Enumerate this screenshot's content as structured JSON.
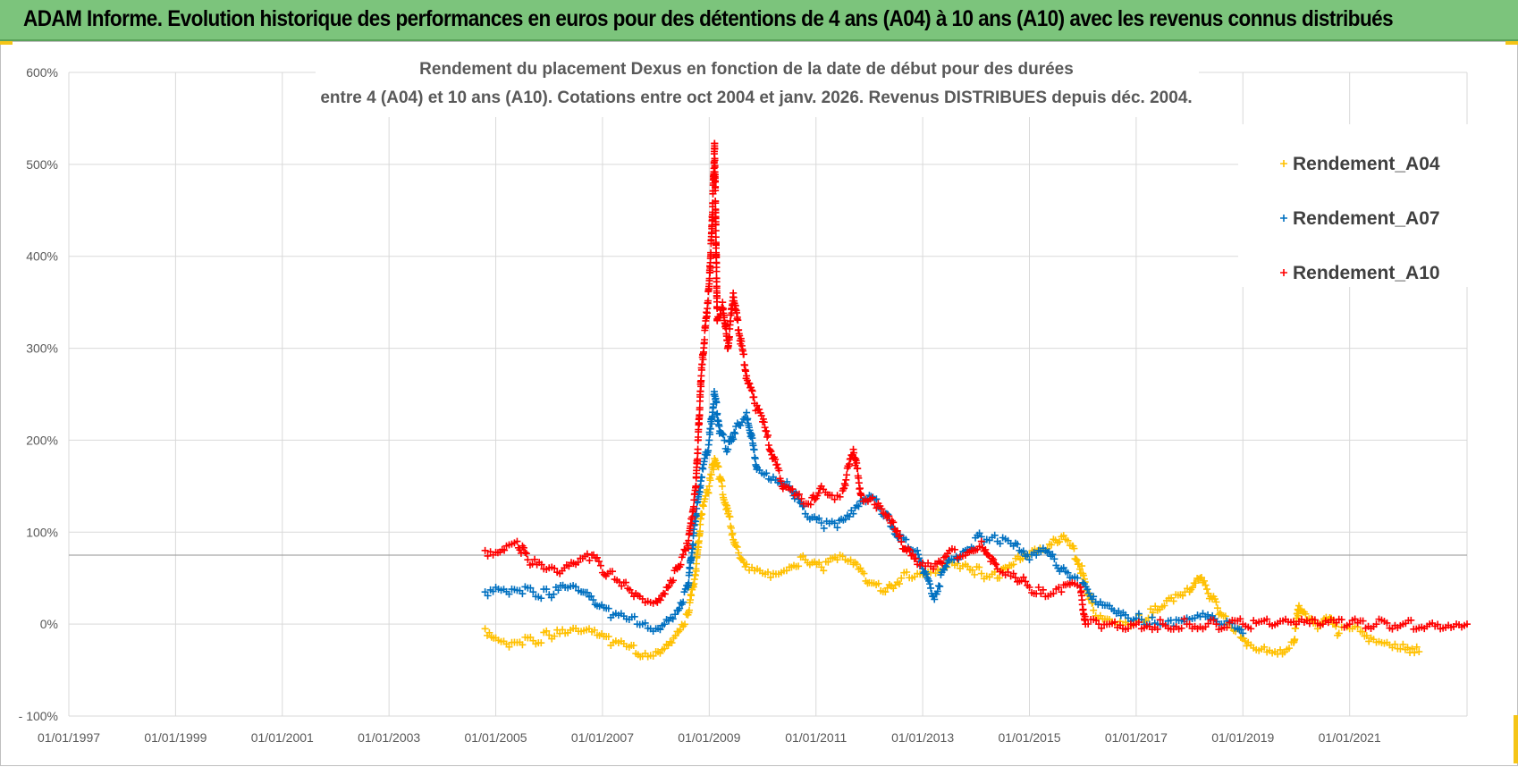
{
  "header": {
    "title": "ADAM Informe. Evolution historique des performances en euros pour des détentions de 4 ans (A04) à 10 ans (A10) avec les revenus connus distribués"
  },
  "colors": {
    "header_bg": "#7cc47c",
    "corner_accent": "#f5c518",
    "grid": "#d9d9d9",
    "reference_line": "#a6a6a6"
  },
  "chart_data": {
    "type": "scatter",
    "title_lines": [
      "Rendement du placement Dexus en fonction de la date de début pour des durées",
      "entre 4 (A04) et 10 ans (A10). Cotations entre oct 2004 et janv. 2026. Revenus DISTRIBUES depuis déc. 2004."
    ],
    "xlabel": "",
    "ylabel": "",
    "x_tick_labels": [
      "01/01/1997",
      "01/01/1999",
      "01/01/2001",
      "01/01/2003",
      "01/01/2005",
      "01/01/2007",
      "01/01/2009",
      "01/01/2011",
      "01/01/2013",
      "01/01/2015",
      "01/01/2017",
      "01/01/2019",
      "01/01/2021"
    ],
    "x_tick_years": [
      1997,
      1999,
      2001,
      2003,
      2005,
      2007,
      2009,
      2011,
      2013,
      2015,
      2017,
      2019,
      2021
    ],
    "xlim": [
      1997,
      2023.2
    ],
    "y_tick_labels": [
      "- 100%",
      "0%",
      "100%",
      "200%",
      "300%",
      "400%",
      "500%",
      "600%"
    ],
    "y_tick_values": [
      -100,
      0,
      100,
      200,
      300,
      400,
      500,
      600
    ],
    "ylim": [
      -100,
      600
    ],
    "reference_line_y": 75,
    "grid": true,
    "marker": "+",
    "legend_position": "top-right",
    "series": [
      {
        "name": "Rendement_A04",
        "color": "#ffc000",
        "points": [
          [
            2004.8,
            -5
          ],
          [
            2005.0,
            -15
          ],
          [
            2005.3,
            -20
          ],
          [
            2005.7,
            -18
          ],
          [
            2006.0,
            -12
          ],
          [
            2006.3,
            -10
          ],
          [
            2006.6,
            -8
          ],
          [
            2006.9,
            -12
          ],
          [
            2007.2,
            -20
          ],
          [
            2007.5,
            -25
          ],
          [
            2007.75,
            -35
          ],
          [
            2008.0,
            -30
          ],
          [
            2008.2,
            -22
          ],
          [
            2008.4,
            -8
          ],
          [
            2008.6,
            10
          ],
          [
            2008.75,
            60
          ],
          [
            2008.85,
            120
          ],
          [
            2009.0,
            150
          ],
          [
            2009.1,
            180
          ],
          [
            2009.2,
            160
          ],
          [
            2009.35,
            120
          ],
          [
            2009.5,
            85
          ],
          [
            2009.7,
            65
          ],
          [
            2009.9,
            60
          ],
          [
            2010.2,
            55
          ],
          [
            2010.5,
            62
          ],
          [
            2010.8,
            70
          ],
          [
            2011.1,
            62
          ],
          [
            2011.4,
            70
          ],
          [
            2011.7,
            65
          ],
          [
            2012.0,
            45
          ],
          [
            2012.3,
            35
          ],
          [
            2012.6,
            50
          ],
          [
            2012.9,
            55
          ],
          [
            2013.2,
            60
          ],
          [
            2013.5,
            68
          ],
          [
            2013.8,
            65
          ],
          [
            2014.1,
            55
          ],
          [
            2014.4,
            50
          ],
          [
            2014.7,
            65
          ],
          [
            2015.0,
            75
          ],
          [
            2015.3,
            80
          ],
          [
            2015.6,
            95
          ],
          [
            2015.8,
            85
          ],
          [
            2016.0,
            55
          ],
          [
            2016.2,
            15
          ],
          [
            2016.5,
            5
          ],
          [
            2016.8,
            2
          ],
          [
            2017.1,
            5
          ],
          [
            2017.4,
            15
          ],
          [
            2017.7,
            25
          ],
          [
            2018.0,
            35
          ],
          [
            2018.2,
            50
          ],
          [
            2018.4,
            30
          ],
          [
            2018.6,
            10
          ],
          [
            2018.9,
            -5
          ],
          [
            2019.1,
            -20
          ],
          [
            2019.4,
            -25
          ],
          [
            2019.7,
            -28
          ],
          [
            2019.95,
            -20
          ],
          [
            2020.05,
            20
          ],
          [
            2020.2,
            5
          ],
          [
            2020.4,
            -5
          ],
          [
            2020.6,
            5
          ],
          [
            2020.8,
            -10
          ],
          [
            2021.0,
            -5
          ],
          [
            2021.2,
            -8
          ],
          [
            2021.4,
            -15
          ],
          [
            2021.7,
            -20
          ],
          [
            2022.0,
            -22
          ],
          [
            2022.3,
            -30
          ]
        ]
      },
      {
        "name": "Rendement_A07",
        "color": "#0070c0",
        "points": [
          [
            2004.8,
            35
          ],
          [
            2005.0,
            40
          ],
          [
            2005.3,
            38
          ],
          [
            2005.7,
            35
          ],
          [
            2006.0,
            32
          ],
          [
            2006.3,
            40
          ],
          [
            2006.6,
            35
          ],
          [
            2006.9,
            20
          ],
          [
            2007.2,
            10
          ],
          [
            2007.5,
            5
          ],
          [
            2007.75,
            0
          ],
          [
            2008.0,
            -5
          ],
          [
            2008.2,
            5
          ],
          [
            2008.4,
            15
          ],
          [
            2008.6,
            40
          ],
          [
            2008.75,
            120
          ],
          [
            2008.85,
            160
          ],
          [
            2009.0,
            200
          ],
          [
            2009.1,
            250
          ],
          [
            2009.2,
            210
          ],
          [
            2009.35,
            190
          ],
          [
            2009.5,
            215
          ],
          [
            2009.7,
            230
          ],
          [
            2009.9,
            170
          ],
          [
            2010.2,
            160
          ],
          [
            2010.5,
            150
          ],
          [
            2010.8,
            120
          ],
          [
            2011.1,
            110
          ],
          [
            2011.4,
            105
          ],
          [
            2011.7,
            120
          ],
          [
            2012.0,
            140
          ],
          [
            2012.3,
            120
          ],
          [
            2012.6,
            90
          ],
          [
            2012.9,
            80
          ],
          [
            2013.2,
            30
          ],
          [
            2013.5,
            70
          ],
          [
            2013.8,
            80
          ],
          [
            2014.1,
            95
          ],
          [
            2014.4,
            90
          ],
          [
            2014.7,
            85
          ],
          [
            2015.0,
            70
          ],
          [
            2015.3,
            80
          ],
          [
            2015.6,
            60
          ],
          [
            2015.8,
            50
          ],
          [
            2016.0,
            45
          ],
          [
            2016.2,
            30
          ],
          [
            2016.5,
            20
          ],
          [
            2016.8,
            10
          ],
          [
            2017.1,
            5
          ],
          [
            2017.4,
            0
          ],
          [
            2017.7,
            -2
          ],
          [
            2018.0,
            5
          ],
          [
            2018.3,
            8
          ],
          [
            2018.6,
            0
          ],
          [
            2018.9,
            -5
          ],
          [
            2019.0,
            -10
          ]
        ]
      },
      {
        "name": "Rendement_A10",
        "color": "#ff0000",
        "points": [
          [
            2004.8,
            80
          ],
          [
            2005.0,
            78
          ],
          [
            2005.2,
            85
          ],
          [
            2005.4,
            90
          ],
          [
            2005.6,
            70
          ],
          [
            2005.9,
            60
          ],
          [
            2006.2,
            55
          ],
          [
            2006.5,
            65
          ],
          [
            2006.8,
            75
          ],
          [
            2007.1,
            55
          ],
          [
            2007.4,
            45
          ],
          [
            2007.7,
            30
          ],
          [
            2008.0,
            25
          ],
          [
            2008.2,
            40
          ],
          [
            2008.4,
            60
          ],
          [
            2008.6,
            85
          ],
          [
            2008.75,
            150
          ],
          [
            2008.85,
            270
          ],
          [
            2009.0,
            370
          ],
          [
            2009.05,
            430
          ],
          [
            2009.1,
            520
          ],
          [
            2009.15,
            330
          ],
          [
            2009.25,
            350
          ],
          [
            2009.35,
            300
          ],
          [
            2009.45,
            360
          ],
          [
            2009.55,
            320
          ],
          [
            2009.7,
            270
          ],
          [
            2009.85,
            240
          ],
          [
            2010.0,
            220
          ],
          [
            2010.2,
            180
          ],
          [
            2010.4,
            150
          ],
          [
            2010.6,
            140
          ],
          [
            2010.9,
            130
          ],
          [
            2011.1,
            150
          ],
          [
            2011.3,
            140
          ],
          [
            2011.5,
            145
          ],
          [
            2011.7,
            190
          ],
          [
            2011.85,
            140
          ],
          [
            2012.1,
            130
          ],
          [
            2012.4,
            110
          ],
          [
            2012.7,
            80
          ],
          [
            2012.9,
            65
          ],
          [
            2013.2,
            60
          ],
          [
            2013.5,
            80
          ],
          [
            2013.8,
            75
          ],
          [
            2014.1,
            90
          ],
          [
            2014.4,
            60
          ],
          [
            2014.7,
            55
          ],
          [
            2015.0,
            40
          ],
          [
            2015.3,
            30
          ],
          [
            2015.6,
            35
          ],
          [
            2015.8,
            45
          ],
          [
            2015.95,
            40
          ],
          [
            2016.05,
            0
          ],
          [
            2016.5,
            0
          ],
          [
            2017.0,
            0
          ],
          [
            2017.5,
            0
          ],
          [
            2018.0,
            0
          ],
          [
            2018.5,
            0
          ],
          [
            2019.0,
            0
          ],
          [
            2019.5,
            0
          ],
          [
            2020.0,
            0
          ],
          [
            2020.5,
            0
          ],
          [
            2021.0,
            0
          ],
          [
            2021.5,
            0
          ],
          [
            2022.0,
            0
          ],
          [
            2022.5,
            0
          ],
          [
            2023.0,
            0
          ],
          [
            2023.2,
            0
          ]
        ]
      }
    ]
  }
}
